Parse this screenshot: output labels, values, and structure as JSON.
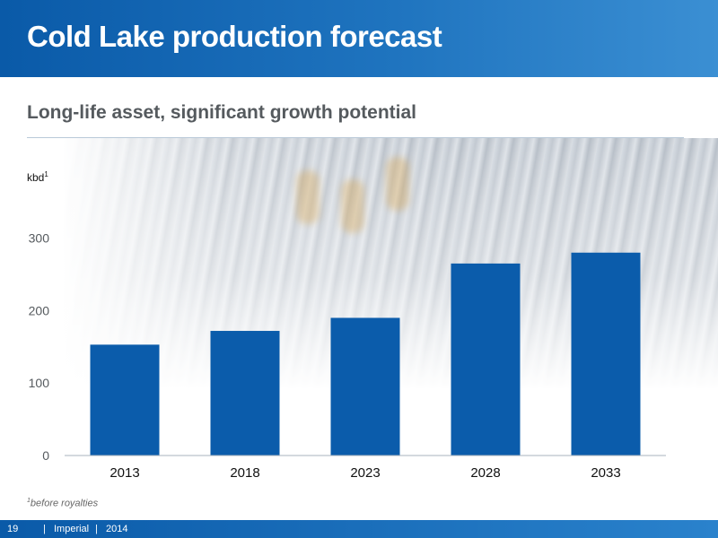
{
  "header": {
    "title": "Cold Lake production forecast"
  },
  "subtitle": "Long-life asset, significant growth potential",
  "footnote": {
    "marker": "1",
    "text": "before royalties"
  },
  "footer": {
    "page": "19",
    "company": "Imperial",
    "year": "2014",
    "separator": "|"
  },
  "colors": {
    "bar": "#0b5cab",
    "banner": "#0a5aa8"
  },
  "chart_data": {
    "type": "bar",
    "categories": [
      "2013",
      "2018",
      "2023",
      "2028",
      "2033"
    ],
    "values": [
      153,
      172,
      190,
      265,
      280
    ],
    "ylabel": "kbd",
    "ylabel_superscript": "1",
    "ylim": [
      0,
      330
    ],
    "yticks": [
      0,
      100,
      200,
      300
    ],
    "grid": false,
    "legend": "none"
  }
}
